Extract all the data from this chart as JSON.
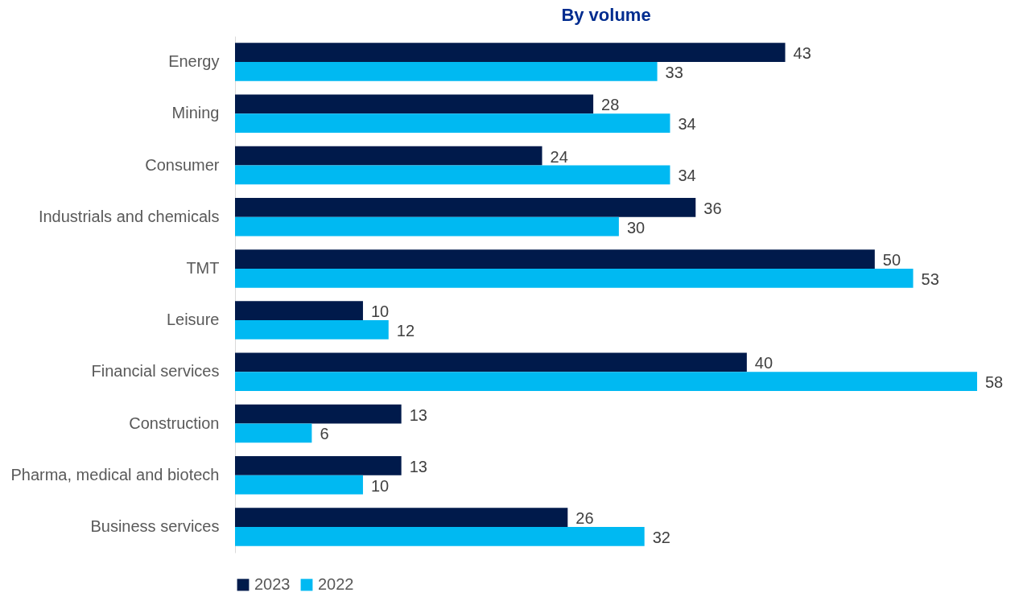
{
  "chart_data": {
    "type": "bar",
    "orientation": "horizontal",
    "title": "By volume",
    "categories": [
      "Energy",
      "Mining",
      "Consumer",
      "Industrials and chemicals",
      "TMT",
      "Leisure",
      "Financial services",
      "Construction",
      "Pharma, medical and biotech",
      "Business services"
    ],
    "series": [
      {
        "name": "2023",
        "color": "#001a4b",
        "values": [
          43,
          28,
          24,
          36,
          50,
          10,
          40,
          13,
          13,
          26
        ]
      },
      {
        "name": "2022",
        "color": "#00b9f2",
        "values": [
          33,
          34,
          34,
          30,
          53,
          12,
          58,
          6,
          10,
          32
        ]
      }
    ],
    "data_labels": true,
    "legend": "bottom"
  }
}
